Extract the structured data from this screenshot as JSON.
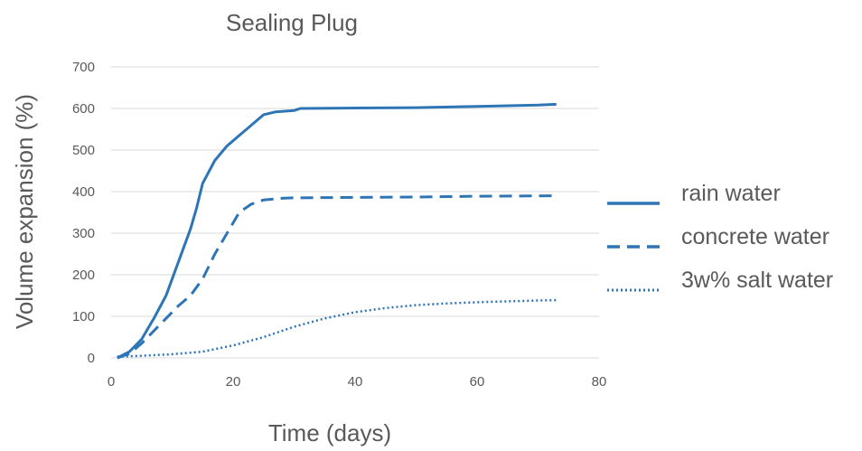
{
  "chart_data": {
    "type": "line",
    "title": "Sealing Plug",
    "xlabel": "Time (days)",
    "ylabel": "Volume expansion (%)",
    "xlim": [
      0,
      80
    ],
    "ylim": [
      0,
      700
    ],
    "xticks": [
      0,
      20,
      40,
      60,
      80
    ],
    "yticks": [
      0,
      100,
      200,
      300,
      400,
      500,
      600,
      700
    ],
    "grid": "horizontal",
    "legend_position": "right",
    "color": "#2e75b6",
    "series": [
      {
        "name": "rain water",
        "style": "solid",
        "points": [
          [
            1,
            0
          ],
          [
            3,
            15
          ],
          [
            5,
            45
          ],
          [
            7,
            95
          ],
          [
            9,
            150
          ],
          [
            11,
            230
          ],
          [
            13,
            310
          ],
          [
            14,
            360
          ],
          [
            15,
            420
          ],
          [
            17,
            475
          ],
          [
            19,
            510
          ],
          [
            21,
            535
          ],
          [
            23,
            560
          ],
          [
            25,
            585
          ],
          [
            27,
            592
          ],
          [
            30,
            595
          ],
          [
            31,
            600
          ],
          [
            40,
            601
          ],
          [
            50,
            602
          ],
          [
            60,
            605
          ],
          [
            70,
            608
          ],
          [
            73,
            610
          ]
        ]
      },
      {
        "name": "concrete water",
        "style": "dashed",
        "points": [
          [
            1,
            0
          ],
          [
            3,
            10
          ],
          [
            5,
            35
          ],
          [
            7,
            65
          ],
          [
            9,
            95
          ],
          [
            11,
            125
          ],
          [
            13,
            150
          ],
          [
            15,
            190
          ],
          [
            17,
            250
          ],
          [
            19,
            300
          ],
          [
            21,
            350
          ],
          [
            23,
            370
          ],
          [
            25,
            380
          ],
          [
            28,
            384
          ],
          [
            30,
            385
          ],
          [
            40,
            386
          ],
          [
            50,
            387
          ],
          [
            60,
            389
          ],
          [
            73,
            390
          ]
        ]
      },
      {
        "name": "3w% salt water",
        "style": "dotted",
        "points": [
          [
            1,
            3
          ],
          [
            5,
            5
          ],
          [
            10,
            9
          ],
          [
            15,
            15
          ],
          [
            20,
            30
          ],
          [
            25,
            50
          ],
          [
            30,
            75
          ],
          [
            35,
            95
          ],
          [
            40,
            110
          ],
          [
            45,
            120
          ],
          [
            50,
            127
          ],
          [
            55,
            131
          ],
          [
            60,
            134
          ],
          [
            65,
            136
          ],
          [
            70,
            138
          ],
          [
            73,
            139
          ]
        ]
      }
    ]
  }
}
